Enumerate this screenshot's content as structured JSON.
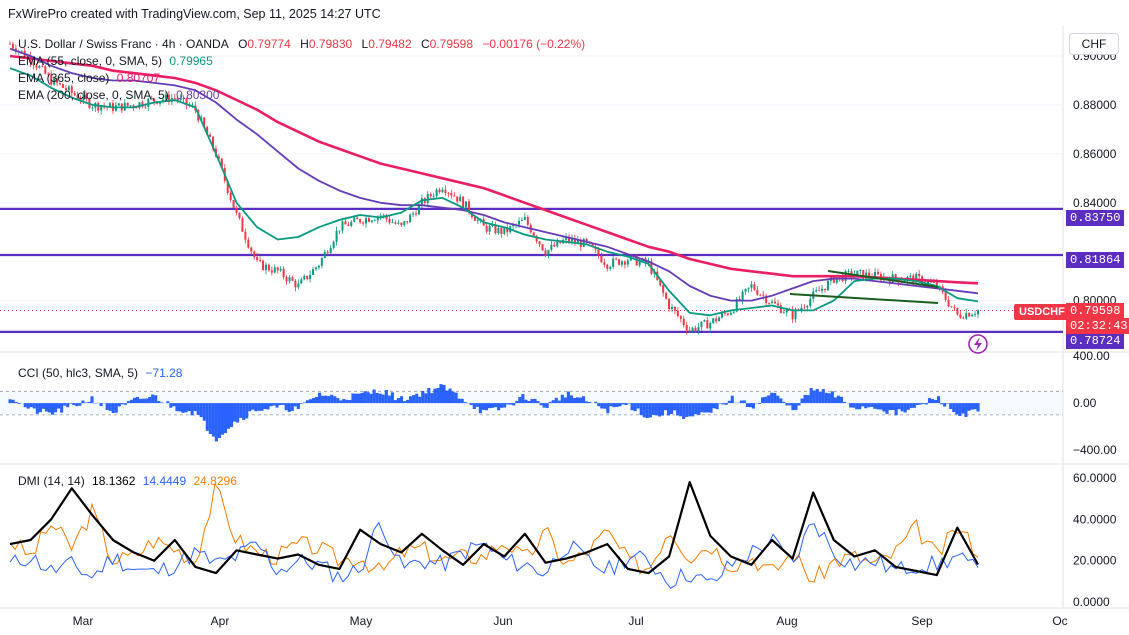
{
  "attribution": "FxWirePro created with TradingView.com, Sep 11, 2025 14:27 UTC",
  "legend": {
    "symbol": "U.S. Dollar / Swiss Franc · 4h · OANDA",
    "o_label": "O",
    "o_value": "0.79774",
    "h_label": "H",
    "h_value": "0.79830",
    "l_label": "L",
    "l_value": "0.79482",
    "c_label": "C",
    "c_value": "0.79598",
    "change": "−0.00176 (−0.22%)",
    "ema55_label": "EMA (55, close, 0, SMA, 5)",
    "ema55_value": "0.79965",
    "ema365_label": "EMA (365, close)",
    "ema365_value": "0.80707",
    "ema200_label": "EMA (200, close, 0, SMA, 5)",
    "ema200_value": "0.80300"
  },
  "currency_button": "CHF",
  "price_axis": [
    "0.90000",
    "0.88000",
    "0.86000",
    "0.84000",
    "0.80000"
  ],
  "level_tags": {
    "l1": "0.83750",
    "l2": "0.81864",
    "l3": "0.78724"
  },
  "last_price": {
    "symbol_tag": "USDCHF",
    "price": "0.79598",
    "countdown": "02:32:43"
  },
  "cci": {
    "label": "CCI (50, hlc3, SMA, 5)",
    "value": "−71.28",
    "axis": [
      "400.00",
      "0.00",
      "−400.00"
    ]
  },
  "dmi": {
    "label": "DMI (14, 14)",
    "adx": "18.1362",
    "plus_di": "14.4449",
    "minus_di": "24.8296",
    "axis": [
      "60.0000",
      "40.0000",
      "20.0000",
      "0.0000"
    ]
  },
  "time_axis": [
    "Mar",
    "Apr",
    "May",
    "Jun",
    "Jul",
    "Aug",
    "Sep",
    "Oc"
  ],
  "colors": {
    "candle_up": "#089981",
    "candle_down": "#f23645",
    "ema55": "#089981",
    "ema200": "#673ab7",
    "ema365": "#e91e63",
    "levels": "#5b2ec2",
    "cci": "#2962ff",
    "adx": "#000000",
    "plus_di": "#2962ff",
    "minus_di": "#f57c00"
  },
  "chart_data": {
    "type": "line",
    "price_range": [
      0.779,
      0.909
    ],
    "horizontal_levels": [
      0.8375,
      0.81864,
      0.78724
    ],
    "ema55_path": [
      0.895,
      0.892,
      0.887,
      0.883,
      0.88,
      0.879,
      0.879,
      0.881,
      0.882,
      0.879,
      0.86,
      0.84,
      0.83,
      0.825,
      0.826,
      0.83,
      0.833,
      0.835,
      0.834,
      0.836,
      0.841,
      0.842,
      0.838,
      0.832,
      0.83,
      0.827,
      0.825,
      0.824,
      0.823,
      0.82,
      0.818,
      0.815,
      0.804,
      0.795,
      0.794,
      0.796,
      0.797,
      0.798,
      0.796,
      0.796,
      0.8,
      0.808,
      0.809,
      0.809,
      0.808,
      0.806,
      0.801,
      0.7997
    ],
    "ema200_path": [
      0.903,
      0.9,
      0.896,
      0.893,
      0.891,
      0.89,
      0.89,
      0.889,
      0.888,
      0.886,
      0.881,
      0.874,
      0.868,
      0.861,
      0.854,
      0.849,
      0.845,
      0.842,
      0.84,
      0.839,
      0.839,
      0.838,
      0.837,
      0.835,
      0.832,
      0.83,
      0.828,
      0.826,
      0.824,
      0.822,
      0.819,
      0.816,
      0.812,
      0.806,
      0.802,
      0.8,
      0.8,
      0.802,
      0.805,
      0.808,
      0.809,
      0.809,
      0.808,
      0.807,
      0.806,
      0.805,
      0.804,
      0.803
    ],
    "ema365_path": [
      0.9,
      0.899,
      0.898,
      0.897,
      0.896,
      0.894,
      0.893,
      0.892,
      0.891,
      0.889,
      0.886,
      0.882,
      0.878,
      0.873,
      0.869,
      0.865,
      0.862,
      0.859,
      0.856,
      0.854,
      0.852,
      0.85,
      0.848,
      0.846,
      0.843,
      0.84,
      0.837,
      0.834,
      0.831,
      0.828,
      0.825,
      0.822,
      0.82,
      0.817,
      0.815,
      0.813,
      0.812,
      0.811,
      0.81,
      0.81,
      0.81,
      0.81,
      0.8095,
      0.809,
      0.8085,
      0.808,
      0.8075,
      0.8071
    ],
    "close_path": [
      0.905,
      0.899,
      0.89,
      0.885,
      0.88,
      0.879,
      0.88,
      0.882,
      0.883,
      0.878,
      0.86,
      0.835,
      0.815,
      0.812,
      0.806,
      0.815,
      0.83,
      0.833,
      0.835,
      0.83,
      0.84,
      0.847,
      0.84,
      0.83,
      0.828,
      0.833,
      0.82,
      0.825,
      0.823,
      0.815,
      0.817,
      0.815,
      0.798,
      0.788,
      0.791,
      0.796,
      0.806,
      0.799,
      0.794,
      0.802,
      0.809,
      0.811,
      0.81,
      0.809,
      0.809,
      0.806,
      0.794,
      0.796
    ],
    "cci_range": [
      -500,
      400
    ],
    "cci_path": [
      60,
      -60,
      -90,
      -30,
      40,
      -80,
      20,
      60,
      -40,
      -80,
      -300,
      -150,
      -50,
      -40,
      -50,
      80,
      40,
      70,
      110,
      30,
      90,
      140,
      40,
      -80,
      -40,
      60,
      -30,
      80,
      20,
      -60,
      -10,
      -120,
      -80,
      -120,
      -90,
      40,
      -30,
      90,
      -60,
      120,
      70,
      -40,
      -30,
      -90,
      -40,
      50,
      -100,
      -71.28
    ],
    "dmi_range": [
      0,
      60
    ],
    "adx_path": [
      28,
      30,
      40,
      55,
      42,
      30,
      24,
      20,
      30,
      17,
      14,
      25,
      23,
      21,
      23,
      18,
      16,
      35,
      28,
      24,
      33,
      25,
      18,
      28,
      22,
      33,
      19,
      21,
      24,
      28,
      16,
      14,
      22,
      58,
      32,
      22,
      18,
      30,
      21,
      53,
      30,
      22,
      25,
      17,
      15,
      13,
      36,
      18.1362
    ],
    "plus_di_path": [
      18,
      22,
      15,
      18,
      12,
      22,
      16,
      14,
      18,
      24,
      18,
      22,
      28,
      15,
      20,
      18,
      12,
      16,
      40,
      16,
      20,
      18,
      24,
      28,
      20,
      18,
      14,
      28,
      20,
      15,
      22,
      20,
      10,
      14,
      8,
      18,
      24,
      30,
      18,
      40,
      24,
      18,
      20,
      15,
      18,
      18,
      22,
      14.4449
    ],
    "minus_di_path": [
      30,
      22,
      38,
      26,
      44,
      20,
      22,
      30,
      26,
      20,
      55,
      30,
      24,
      22,
      28,
      26,
      20,
      22,
      14,
      24,
      26,
      20,
      22,
      22,
      30,
      20,
      34,
      18,
      24,
      34,
      20,
      16,
      36,
      22,
      28,
      18,
      22,
      14,
      24,
      10,
      20,
      22,
      18,
      24,
      36,
      22,
      36,
      24.8296
    ],
    "time_labels": [
      "Mar",
      "Apr",
      "May",
      "Jun",
      "Jul",
      "Aug",
      "Sep",
      "Oc"
    ]
  }
}
